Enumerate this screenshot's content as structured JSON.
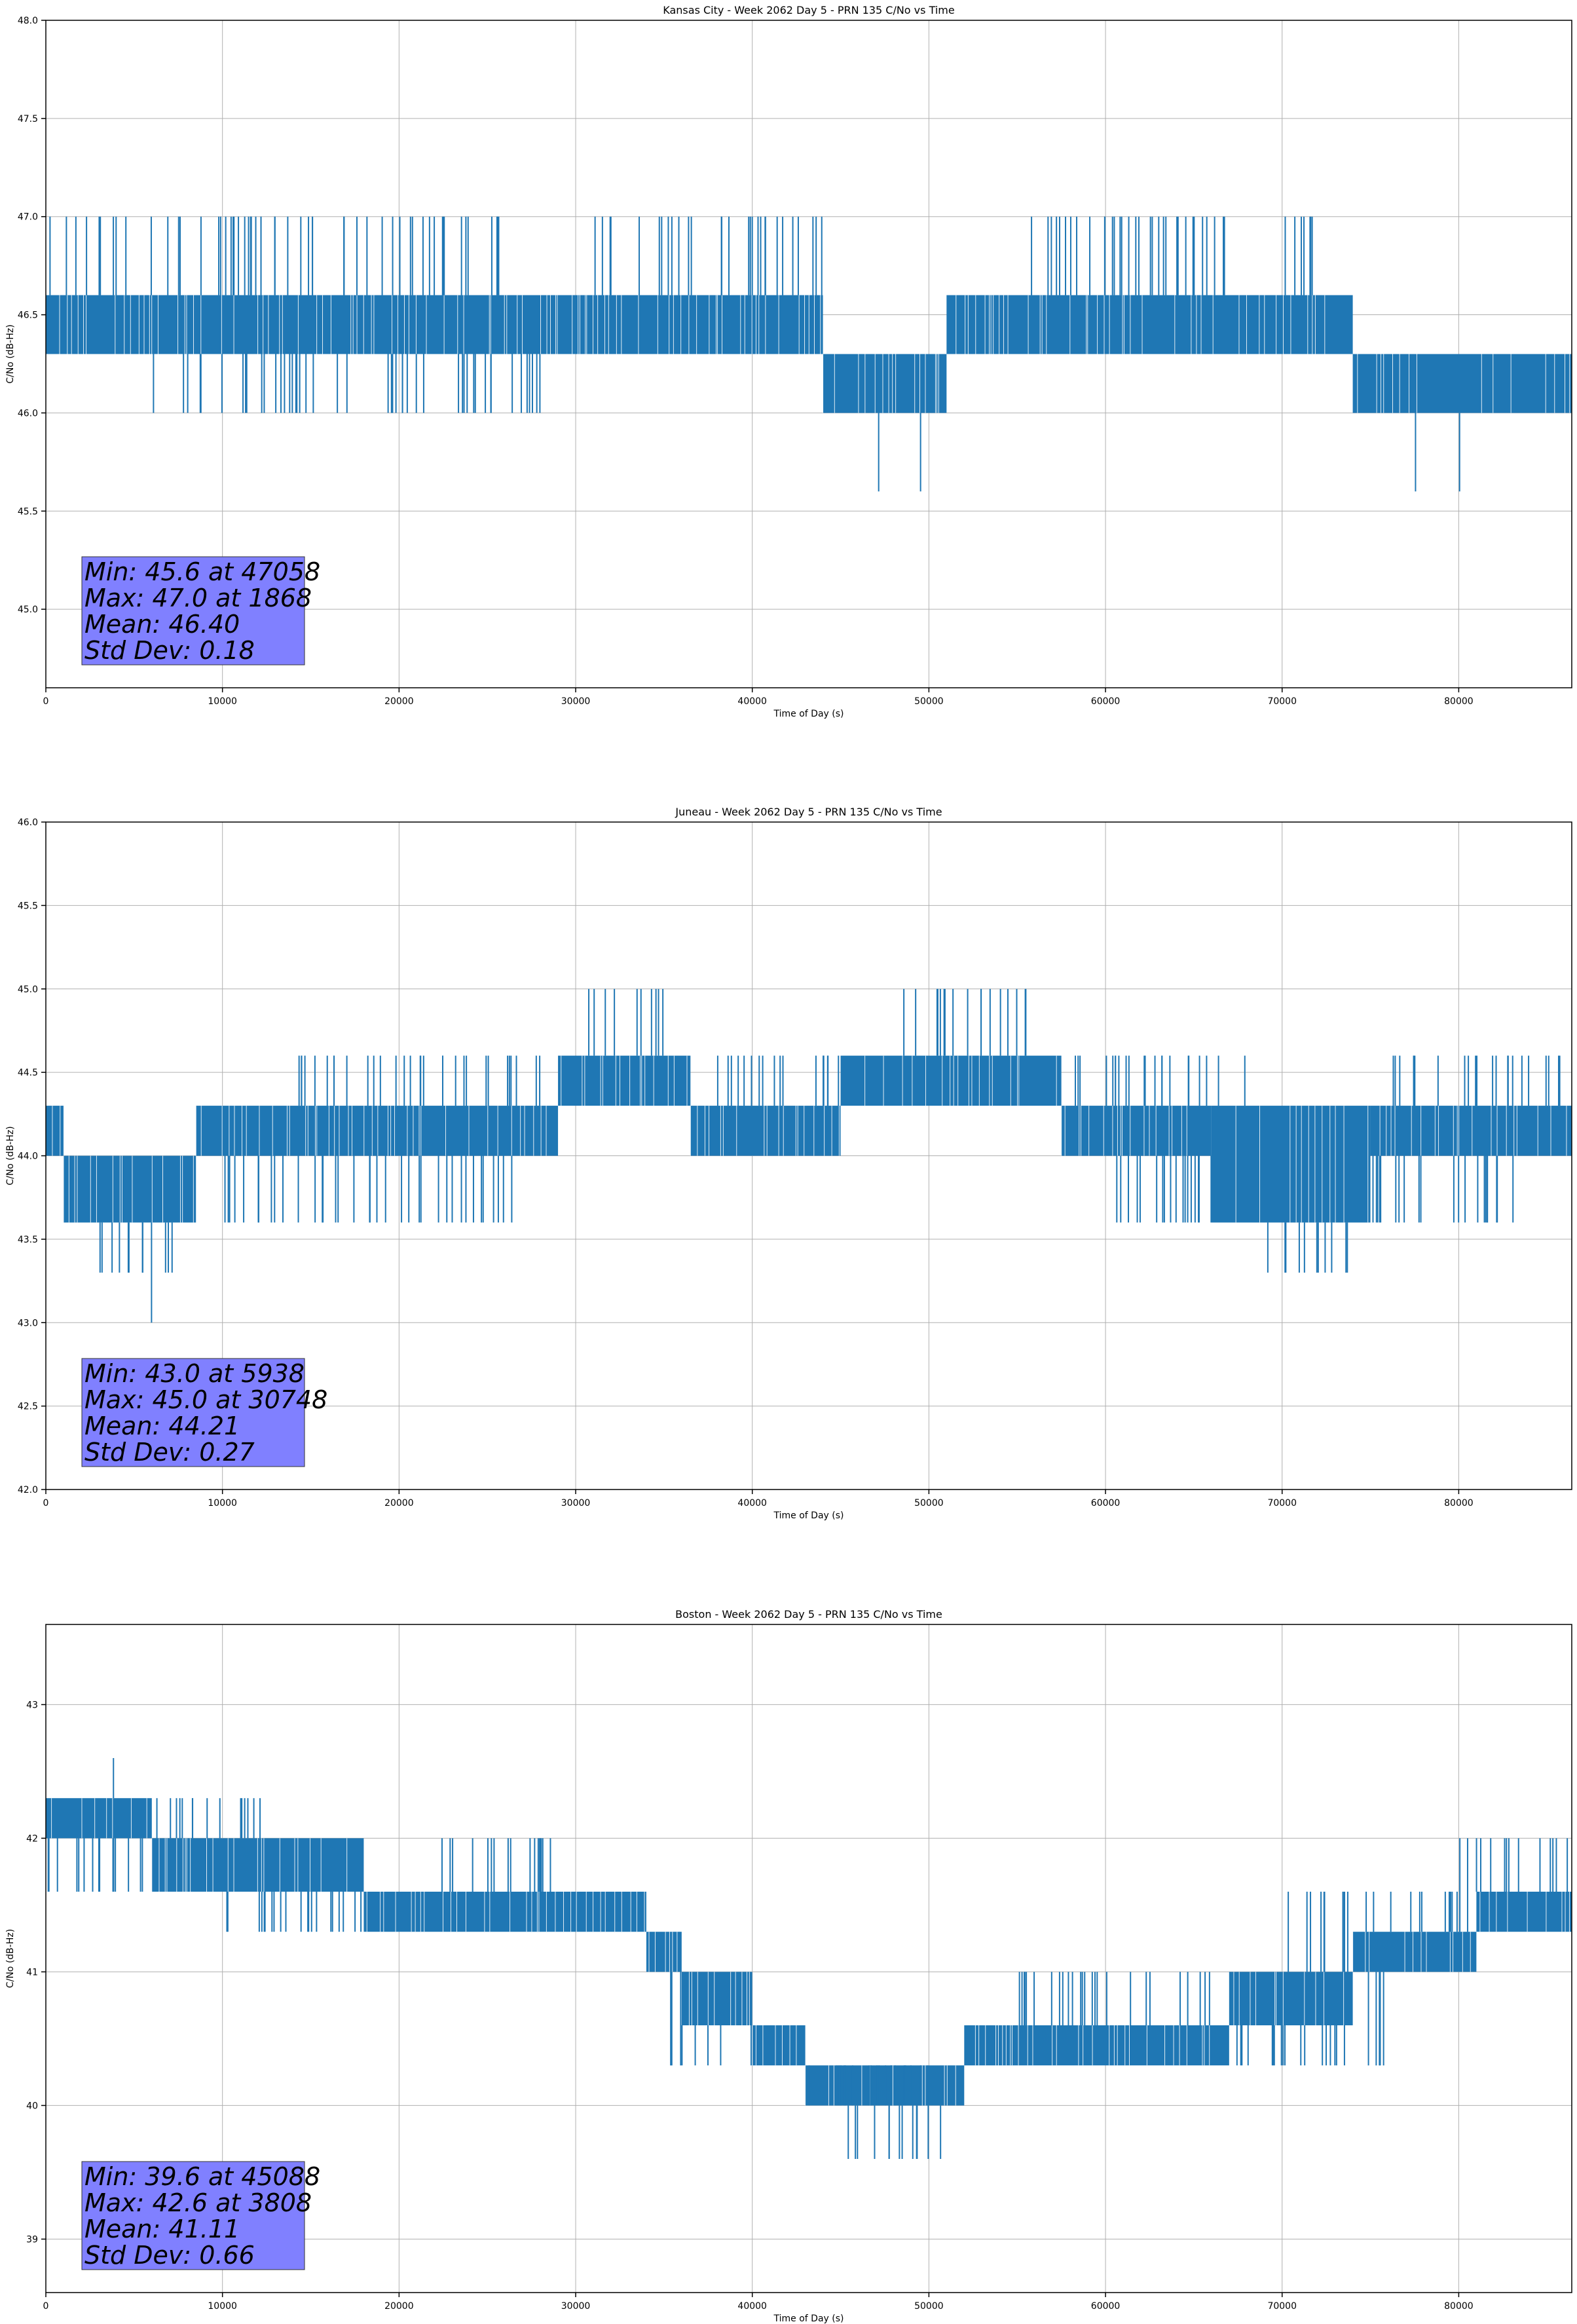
{
  "chart_data": [
    {
      "type": "line",
      "title": "Kansas City - Week 2062 Day 5 - PRN 135 C/No vs Time",
      "xlabel": "Time of Day (s)",
      "ylabel": "C/No (dB-Hz)",
      "xlim": [
        0,
        86400
      ],
      "ylim": [
        44.6,
        48.0
      ],
      "xticks": [
        "0",
        "10000",
        "20000",
        "30000",
        "40000",
        "50000",
        "60000",
        "70000",
        "80000"
      ],
      "yticks": [
        "45.0",
        "45.5",
        "46.0",
        "46.5",
        "47.0",
        "47.5",
        "48.0"
      ],
      "grid": true,
      "series_color": "#1f77b4",
      "levels": [
        46.0,
        46.3,
        46.6
      ],
      "bands": [
        {
          "x": [
            0,
            12000
          ],
          "low": 46.3,
          "high": 46.6
        },
        {
          "x": [
            12000,
            44000
          ],
          "low": 46.3,
          "high": 46.6
        },
        {
          "x": [
            44000,
            51000
          ],
          "low": 46.0,
          "high": 46.3
        },
        {
          "x": [
            51000,
            74000
          ],
          "low": 46.3,
          "high": 46.6
        },
        {
          "x": [
            74000,
            86400
          ],
          "low": 46.0,
          "high": 46.3
        }
      ],
      "spikes_up": [
        {
          "x": [
            0,
            26000
          ],
          "level": 47.0
        },
        {
          "x": [
            31000,
            44000
          ],
          "level": 47.0
        },
        {
          "x": [
            55000,
            73000
          ],
          "level": 47.0
        }
      ],
      "spikes_down": [
        {
          "x": [
            6000,
            28000
          ],
          "level": 46.0
        },
        {
          "x": [
            47058,
            47200
          ],
          "level": 45.6
        },
        {
          "x": [
            49500,
            49600
          ],
          "level": 45.6
        },
        {
          "x": [
            77500,
            77600
          ],
          "level": 45.6
        },
        {
          "x": [
            80000,
            80100
          ],
          "level": 45.6
        }
      ],
      "stats": {
        "line1": "Min: 45.6 at 47058",
        "line2": "Max: 47.0 at 1868",
        "line3": "Mean: 46.40",
        "line4": "Std Dev: 0.18"
      },
      "stats_box_color": "#8080ff"
    },
    {
      "type": "line",
      "title": "Juneau - Week 2062 Day 5 - PRN 135 C/No vs Time",
      "xlabel": "Time of Day (s)",
      "ylabel": "C/No (dB-Hz)",
      "xlim": [
        0,
        86400
      ],
      "ylim": [
        42.0,
        46.0
      ],
      "xticks": [
        "0",
        "10000",
        "20000",
        "30000",
        "40000",
        "50000",
        "60000",
        "70000",
        "80000"
      ],
      "yticks": [
        "42.0",
        "42.5",
        "43.0",
        "43.5",
        "44.0",
        "44.5",
        "45.0",
        "45.5",
        "46.0"
      ],
      "grid": true,
      "series_color": "#1f77b4",
      "bands": [
        {
          "x": [
            0,
            1000
          ],
          "low": 44.0,
          "high": 44.3
        },
        {
          "x": [
            1000,
            8500
          ],
          "low": 43.6,
          "high": 44.0
        },
        {
          "x": [
            8500,
            29000
          ],
          "low": 44.0,
          "high": 44.3
        },
        {
          "x": [
            29000,
            36500
          ],
          "low": 44.3,
          "high": 44.6
        },
        {
          "x": [
            36500,
            45000
          ],
          "low": 44.0,
          "high": 44.3
        },
        {
          "x": [
            45000,
            57500
          ],
          "low": 44.3,
          "high": 44.6
        },
        {
          "x": [
            57500,
            66000
          ],
          "low": 44.0,
          "high": 44.3
        },
        {
          "x": [
            66000,
            75000
          ],
          "low": 43.6,
          "high": 44.3
        },
        {
          "x": [
            75000,
            86400
          ],
          "low": 44.0,
          "high": 44.3
        }
      ],
      "spikes_up": [
        {
          "x": [
            14000,
            28000
          ],
          "level": 44.6
        },
        {
          "x": [
            30500,
            35000
          ],
          "level": 45.0
        },
        {
          "x": [
            38000,
            46000
          ],
          "level": 44.6
        },
        {
          "x": [
            48500,
            56000
          ],
          "level": 45.0
        },
        {
          "x": [
            58000,
            68000
          ],
          "level": 44.6
        },
        {
          "x": [
            76000,
            86000
          ],
          "level": 44.6
        }
      ],
      "spikes_down": [
        {
          "x": [
            3000,
            8000
          ],
          "level": 43.3
        },
        {
          "x": [
            5938,
            6000
          ],
          "level": 43.0
        },
        {
          "x": [
            10000,
            26500
          ],
          "level": 43.6
        },
        {
          "x": [
            60000,
            84000
          ],
          "level": 43.6
        },
        {
          "x": [
            69000,
            74000
          ],
          "level": 43.3
        }
      ],
      "stats": {
        "line1": "Min: 43.0 at 5938",
        "line2": "Max: 45.0 at 30748",
        "line3": "Mean: 44.21",
        "line4": "Std Dev: 0.27"
      },
      "stats_box_color": "#8080ff"
    },
    {
      "type": "line",
      "title": "Boston - Week 2062 Day 5 - PRN 135 C/No vs Time",
      "xlabel": "Time of Day (s)",
      "ylabel": "C/No (dB-Hz)",
      "xlim": [
        0,
        86400
      ],
      "ylim": [
        38.6,
        43.6
      ],
      "xticks": [
        "0",
        "10000",
        "20000",
        "30000",
        "40000",
        "50000",
        "60000",
        "70000",
        "80000"
      ],
      "yticks": [
        "39",
        "40",
        "41",
        "42",
        "43"
      ],
      "grid": true,
      "series_color": "#1f77b4",
      "bands": [
        {
          "x": [
            0,
            6000
          ],
          "low": 42.0,
          "high": 42.3
        },
        {
          "x": [
            6000,
            18000
          ],
          "low": 41.6,
          "high": 42.0
        },
        {
          "x": [
            18000,
            34000
          ],
          "low": 41.3,
          "high": 41.6
        },
        {
          "x": [
            34000,
            36000
          ],
          "low": 41.0,
          "high": 41.3
        },
        {
          "x": [
            36000,
            40000
          ],
          "low": 40.6,
          "high": 41.0
        },
        {
          "x": [
            40000,
            43000
          ],
          "low": 40.3,
          "high": 40.6
        },
        {
          "x": [
            43000,
            52000
          ],
          "low": 40.0,
          "high": 40.3
        },
        {
          "x": [
            52000,
            67000
          ],
          "low": 40.3,
          "high": 40.6
        },
        {
          "x": [
            67000,
            74000
          ],
          "low": 40.6,
          "high": 41.0
        },
        {
          "x": [
            74000,
            81000
          ],
          "low": 41.0,
          "high": 41.3
        },
        {
          "x": [
            81000,
            86400
          ],
          "low": 41.3,
          "high": 41.6
        }
      ],
      "spikes_up": [
        {
          "x": [
            0,
            13000
          ],
          "level": 42.3
        },
        {
          "x": [
            13000,
            29000
          ],
          "level": 42.0
        },
        {
          "x": [
            3808,
            3900
          ],
          "level": 42.6
        },
        {
          "x": [
            55000,
            70000
          ],
          "level": 41.0
        },
        {
          "x": [
            70000,
            80000
          ],
          "level": 41.6
        },
        {
          "x": [
            80000,
            86400
          ],
          "level": 42.0
        }
      ],
      "spikes_down": [
        {
          "x": [
            0,
            15000
          ],
          "level": 41.6
        },
        {
          "x": [
            10000,
            30000
          ],
          "level": 41.3
        },
        {
          "x": [
            35000,
            50000
          ],
          "level": 40.3
        },
        {
          "x": [
            45088,
            51000
          ],
          "level": 39.6
        },
        {
          "x": [
            60000,
            76000
          ],
          "level": 40.3
        }
      ],
      "stats": {
        "line1": "Min: 39.6 at 45088",
        "line2": "Max: 42.6 at 3808",
        "line3": "Mean: 41.11",
        "line4": "Std Dev: 0.66"
      },
      "stats_box_color": "#8080ff"
    }
  ]
}
